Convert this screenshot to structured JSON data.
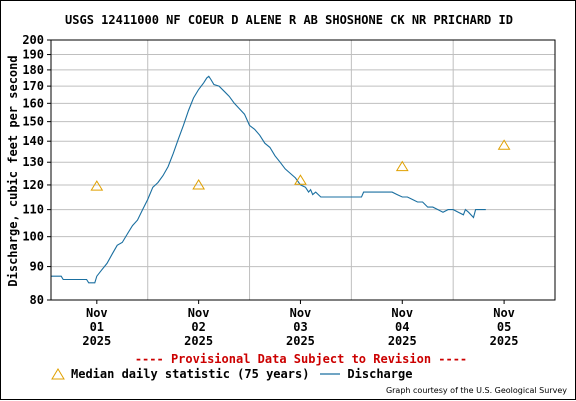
{
  "title": "USGS 12411000 NF COEUR D ALENE R AB SHOSHONE CK NR PRICHARD ID",
  "y_axis_label": "Discharge, cubic feet per second",
  "provisional_note": "---- Provisional Data Subject to Revision ----",
  "legend": {
    "median_label": "Median daily statistic (75 years)",
    "discharge_label": "Discharge"
  },
  "courtesy": "Graph courtesy of the U.S. Geological Survey",
  "colors": {
    "discharge": "#1a6fa0",
    "median": "#e0a000",
    "grid": "#bfbfbf",
    "provisional": "#cc0000"
  },
  "chart_data": {
    "type": "line",
    "y_scale": "log",
    "ylim": [
      80,
      200
    ],
    "y_ticks": [
      80,
      90,
      100,
      110,
      120,
      130,
      140,
      150,
      160,
      170,
      180,
      190,
      200
    ],
    "xlim": [
      -0.45,
      4.5
    ],
    "x_ticks": [
      {
        "x": 0,
        "line1": "Nov",
        "line2": "01",
        "line3": "2025"
      },
      {
        "x": 1,
        "line1": "Nov",
        "line2": "02",
        "line3": "2025"
      },
      {
        "x": 2,
        "line1": "Nov",
        "line2": "03",
        "line3": "2025"
      },
      {
        "x": 3,
        "line1": "Nov",
        "line2": "04",
        "line3": "2025"
      },
      {
        "x": 4,
        "line1": "Nov",
        "line2": "05",
        "line3": "2025"
      }
    ],
    "series": [
      {
        "name": "Discharge",
        "style": "line",
        "points": [
          [
            -0.45,
            87
          ],
          [
            -0.35,
            87
          ],
          [
            -0.33,
            86
          ],
          [
            -0.1,
            86
          ],
          [
            -0.08,
            85
          ],
          [
            -0.02,
            85
          ],
          [
            0.0,
            87
          ],
          [
            0.05,
            89
          ],
          [
            0.1,
            91
          ],
          [
            0.15,
            94
          ],
          [
            0.2,
            97
          ],
          [
            0.25,
            98
          ],
          [
            0.3,
            101
          ],
          [
            0.35,
            104
          ],
          [
            0.4,
            106
          ],
          [
            0.45,
            110
          ],
          [
            0.5,
            114
          ],
          [
            0.55,
            119
          ],
          [
            0.6,
            121
          ],
          [
            0.65,
            124
          ],
          [
            0.7,
            128
          ],
          [
            0.75,
            134
          ],
          [
            0.8,
            141
          ],
          [
            0.85,
            148
          ],
          [
            0.9,
            156
          ],
          [
            0.95,
            163
          ],
          [
            1.0,
            168
          ],
          [
            1.05,
            172
          ],
          [
            1.08,
            175
          ],
          [
            1.1,
            176
          ],
          [
            1.12,
            174
          ],
          [
            1.15,
            171
          ],
          [
            1.2,
            170
          ],
          [
            1.25,
            167
          ],
          [
            1.3,
            164
          ],
          [
            1.35,
            160
          ],
          [
            1.4,
            157
          ],
          [
            1.45,
            154
          ],
          [
            1.5,
            148
          ],
          [
            1.55,
            146
          ],
          [
            1.6,
            143
          ],
          [
            1.65,
            139
          ],
          [
            1.7,
            137
          ],
          [
            1.75,
            133
          ],
          [
            1.8,
            130
          ],
          [
            1.85,
            127
          ],
          [
            1.9,
            125
          ],
          [
            1.95,
            123
          ],
          [
            2.0,
            120
          ],
          [
            2.05,
            119
          ],
          [
            2.08,
            117
          ],
          [
            2.1,
            118
          ],
          [
            2.12,
            116
          ],
          [
            2.15,
            117
          ],
          [
            2.2,
            115
          ],
          [
            2.3,
            115
          ],
          [
            2.4,
            115
          ],
          [
            2.5,
            115
          ],
          [
            2.6,
            115
          ],
          [
            2.62,
            117
          ],
          [
            2.7,
            117
          ],
          [
            2.8,
            117
          ],
          [
            2.9,
            117
          ],
          [
            2.95,
            116
          ],
          [
            3.0,
            115
          ],
          [
            3.05,
            115
          ],
          [
            3.1,
            114
          ],
          [
            3.15,
            113
          ],
          [
            3.2,
            113
          ],
          [
            3.25,
            111
          ],
          [
            3.3,
            111
          ],
          [
            3.35,
            110
          ],
          [
            3.4,
            109
          ],
          [
            3.45,
            110
          ],
          [
            3.5,
            110
          ],
          [
            3.55,
            109
          ],
          [
            3.6,
            108
          ],
          [
            3.62,
            110
          ],
          [
            3.65,
            109
          ],
          [
            3.7,
            107
          ],
          [
            3.72,
            110
          ],
          [
            3.75,
            110
          ],
          [
            3.8,
            110
          ],
          [
            3.82,
            110
          ]
        ]
      },
      {
        "name": "Median daily statistic (75 years)",
        "style": "triangle",
        "points": [
          [
            0,
            119.5
          ],
          [
            1,
            120
          ],
          [
            2,
            122
          ],
          [
            3,
            128
          ],
          [
            4,
            138
          ]
        ]
      }
    ]
  }
}
